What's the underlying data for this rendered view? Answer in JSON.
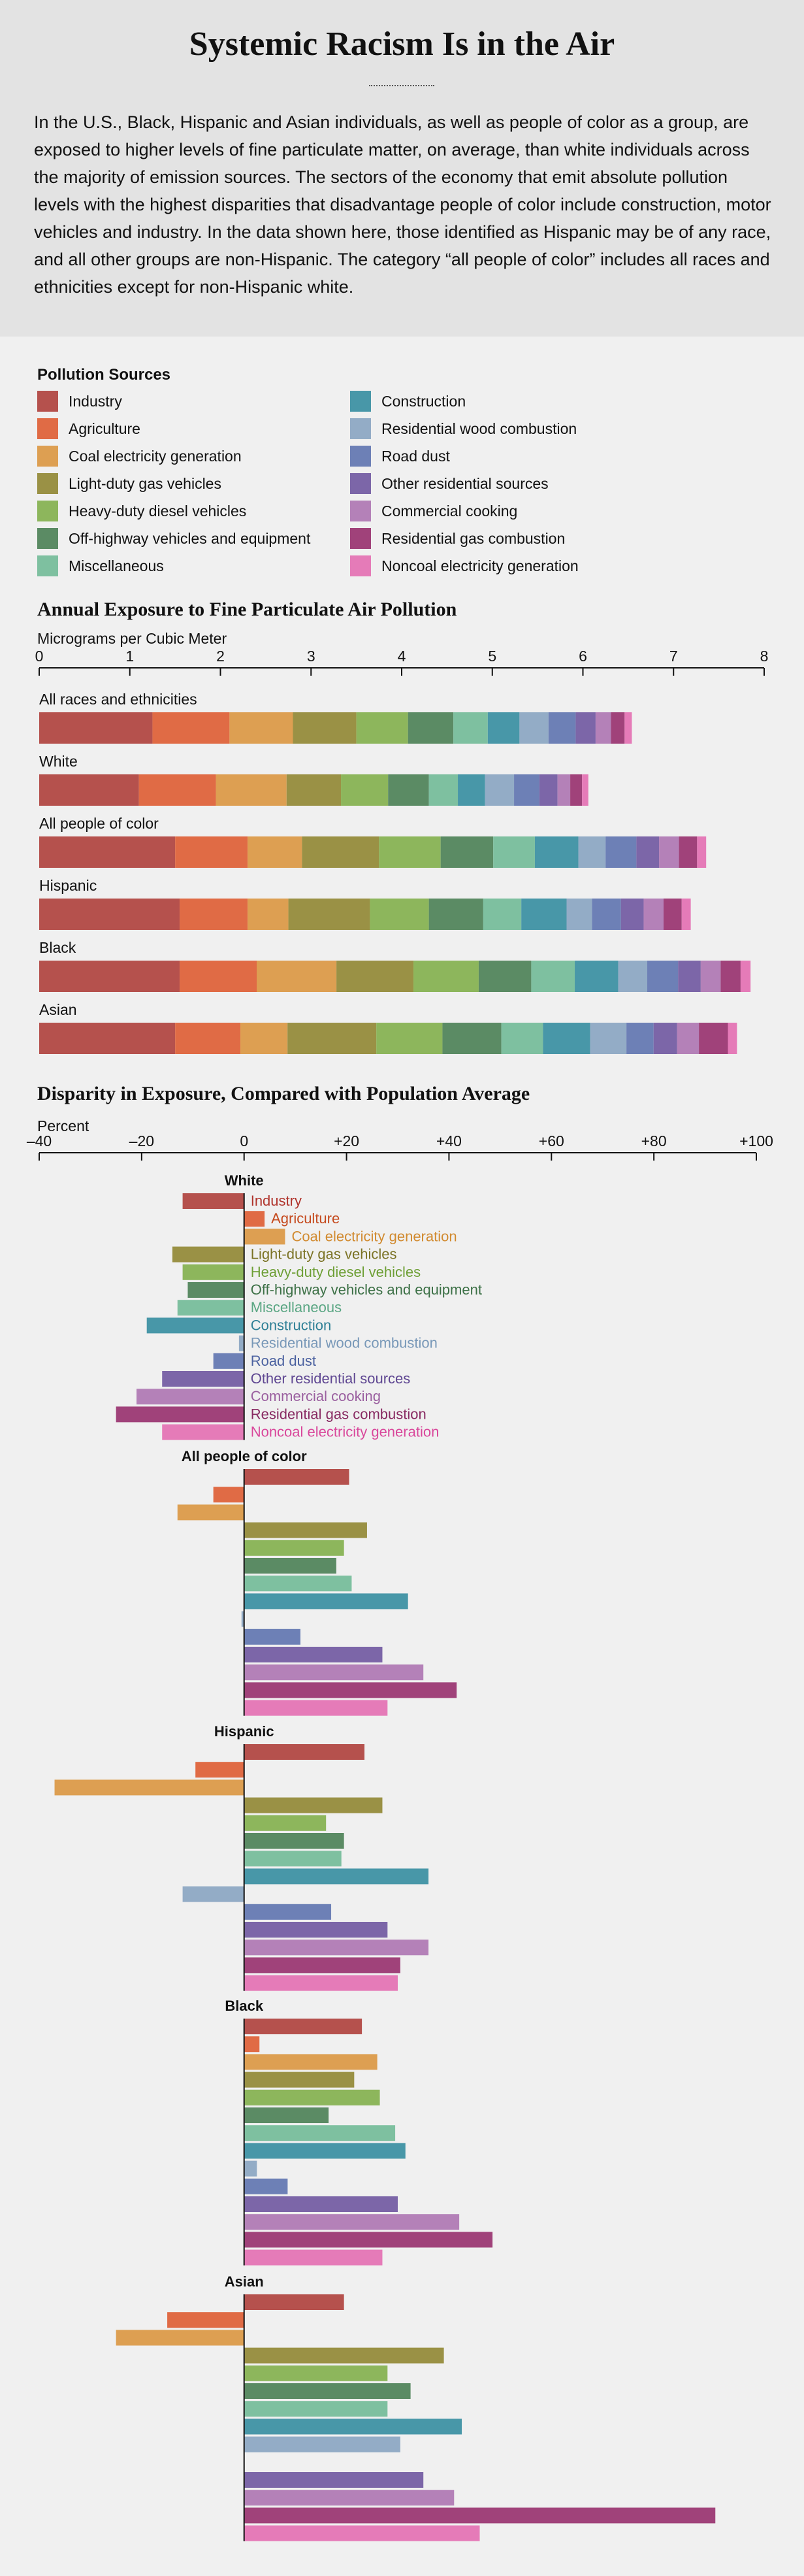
{
  "title": "Systemic Racism Is in the Air",
  "intro": "In the U.S., Black, Hispanic and Asian individuals, as well as people of color as a group, are exposed to higher levels of fine particulate matter, on average, than white individuals across the majority of emission sources. The sectors of the economy that emit absolute pollution levels with the highest disparities that disadvantage people of color include construction, motor vehicles and industry. In the data shown here, those identified as Hispanic may be of any race, and all other groups are non-Hispanic. The category “all people of color” includes all races and ethnicities except for non-Hispanic white.",
  "legend": {
    "title": "Pollution Sources",
    "items": [
      {
        "label": "Industry",
        "color": "#b5514d"
      },
      {
        "label": "Agriculture",
        "color": "#e06b45"
      },
      {
        "label": "Coal electricity generation",
        "color": "#dd9f52"
      },
      {
        "label": "Light-duty gas vehicles",
        "color": "#9a9145"
      },
      {
        "label": "Heavy-duty diesel vehicles",
        "color": "#8db65c"
      },
      {
        "label": "Off-highway vehicles and equipment",
        "color": "#5b8b64"
      },
      {
        "label": "Miscellaneous",
        "color": "#7ec0a0"
      },
      {
        "label": "Construction",
        "color": "#4897a8"
      },
      {
        "label": "Residential wood combustion",
        "color": "#93acc6"
      },
      {
        "label": "Road dust",
        "color": "#6d80b6"
      },
      {
        "label": "Other residential sources",
        "color": "#7c66a8"
      },
      {
        "label": "Commercial cooking",
        "color": "#b481b8"
      },
      {
        "label": "Residential gas combustion",
        "color": "#a0427a"
      },
      {
        "label": "Noncoal electricity generation",
        "color": "#e57bb8"
      }
    ]
  },
  "label_colors": [
    "#b0342c",
    "#c54a1e",
    "#d18a2f",
    "#7a7224",
    "#6e9f36",
    "#3c7046",
    "#5aa683",
    "#2f8096",
    "#7898b8",
    "#4c62a0",
    "#5f4792",
    "#9a5f9f",
    "#882a62",
    "#d9479b"
  ],
  "chart_data": [
    {
      "type": "bar",
      "stacked": true,
      "orientation": "horizontal",
      "title": "Annual Exposure to Fine Particulate Air Pollution",
      "xlabel": "Micrograms per Cubic Meter",
      "xlim": [
        0,
        8
      ],
      "ticks": [
        "0",
        "1",
        "2",
        "3",
        "4",
        "5",
        "6",
        "7",
        "8"
      ],
      "categories": [
        "All races and ethnicities",
        "White",
        "All people of color",
        "Hispanic",
        "Black",
        "Asian"
      ],
      "series": [
        {
          "name": "Industry",
          "values": [
            1.25,
            1.1,
            1.5,
            1.55,
            1.55,
            1.5
          ]
        },
        {
          "name": "Agriculture",
          "values": [
            0.85,
            0.85,
            0.8,
            0.75,
            0.85,
            0.72
          ]
        },
        {
          "name": "Coal electricity generation",
          "values": [
            0.7,
            0.78,
            0.6,
            0.45,
            0.88,
            0.52
          ]
        },
        {
          "name": "Light-duty gas vehicles",
          "values": [
            0.7,
            0.6,
            0.85,
            0.9,
            0.85,
            0.98
          ]
        },
        {
          "name": "Heavy-duty diesel vehicles",
          "values": [
            0.57,
            0.52,
            0.68,
            0.65,
            0.72,
            0.73
          ]
        },
        {
          "name": "Off-highway vehicles and equipment",
          "values": [
            0.5,
            0.45,
            0.58,
            0.6,
            0.58,
            0.65
          ]
        },
        {
          "name": "Miscellaneous",
          "values": [
            0.38,
            0.32,
            0.46,
            0.42,
            0.48,
            0.46
          ]
        },
        {
          "name": "Construction",
          "values": [
            0.35,
            0.3,
            0.48,
            0.5,
            0.48,
            0.52
          ]
        },
        {
          "name": "Residential wood combustion",
          "values": [
            0.32,
            0.32,
            0.3,
            0.28,
            0.32,
            0.4
          ]
        },
        {
          "name": "Road dust",
          "values": [
            0.3,
            0.28,
            0.34,
            0.32,
            0.34,
            0.3
          ]
        },
        {
          "name": "Other residential sources",
          "values": [
            0.22,
            0.2,
            0.25,
            0.25,
            0.25,
            0.26
          ]
        },
        {
          "name": "Commercial cooking",
          "values": [
            0.17,
            0.14,
            0.22,
            0.22,
            0.22,
            0.24
          ]
        },
        {
          "name": "Residential gas combustion",
          "values": [
            0.15,
            0.13,
            0.2,
            0.2,
            0.22,
            0.32
          ]
        },
        {
          "name": "Noncoal electricity generation",
          "values": [
            0.08,
            0.07,
            0.1,
            0.1,
            0.11,
            0.1
          ]
        }
      ]
    },
    {
      "type": "bar",
      "orientation": "horizontal",
      "title": "Disparity in Exposure, Compared with Population Average",
      "xlabel": "Percent",
      "xlim": [
        -40,
        100
      ],
      "ticks": [
        "–40",
        "–20",
        "0",
        "+20",
        "+40",
        "+60",
        "+80",
        "+100"
      ],
      "sources": [
        "Industry",
        "Agriculture",
        "Coal electricity generation",
        "Light-duty gas vehicles",
        "Heavy-duty diesel vehicles",
        "Off-highway vehicles and equipment",
        "Miscellaneous",
        "Construction",
        "Residential wood combustion",
        "Road dust",
        "Other residential sources",
        "Commercial cooking",
        "Residential gas combustion",
        "Noncoal electricity generation"
      ],
      "groups": [
        {
          "name": "White",
          "values": [
            -12,
            4,
            8,
            -14,
            -12,
            -11,
            -13,
            -19,
            -1,
            -6,
            -16,
            -21,
            -25,
            -16
          ]
        },
        {
          "name": "All people of color",
          "values": [
            20.5,
            -6,
            -13,
            24,
            19.5,
            18,
            21,
            32,
            -0.5,
            11,
            27,
            35,
            41.5,
            28
          ]
        },
        {
          "name": "Hispanic",
          "values": [
            23.5,
            -9.5,
            -37,
            27,
            16,
            19.5,
            19,
            36,
            -12,
            17,
            28,
            36,
            30.5,
            30
          ]
        },
        {
          "name": "Black",
          "values": [
            23,
            3,
            26,
            21.5,
            26.5,
            16.5,
            29.5,
            31.5,
            2.5,
            8.5,
            30,
            42,
            48.5,
            27
          ]
        },
        {
          "name": "Asian",
          "values": [
            19.5,
            -15,
            -25,
            39,
            28,
            32.5,
            28,
            42.5,
            30.5,
            0,
            35,
            41,
            92,
            46
          ]
        }
      ]
    }
  ]
}
